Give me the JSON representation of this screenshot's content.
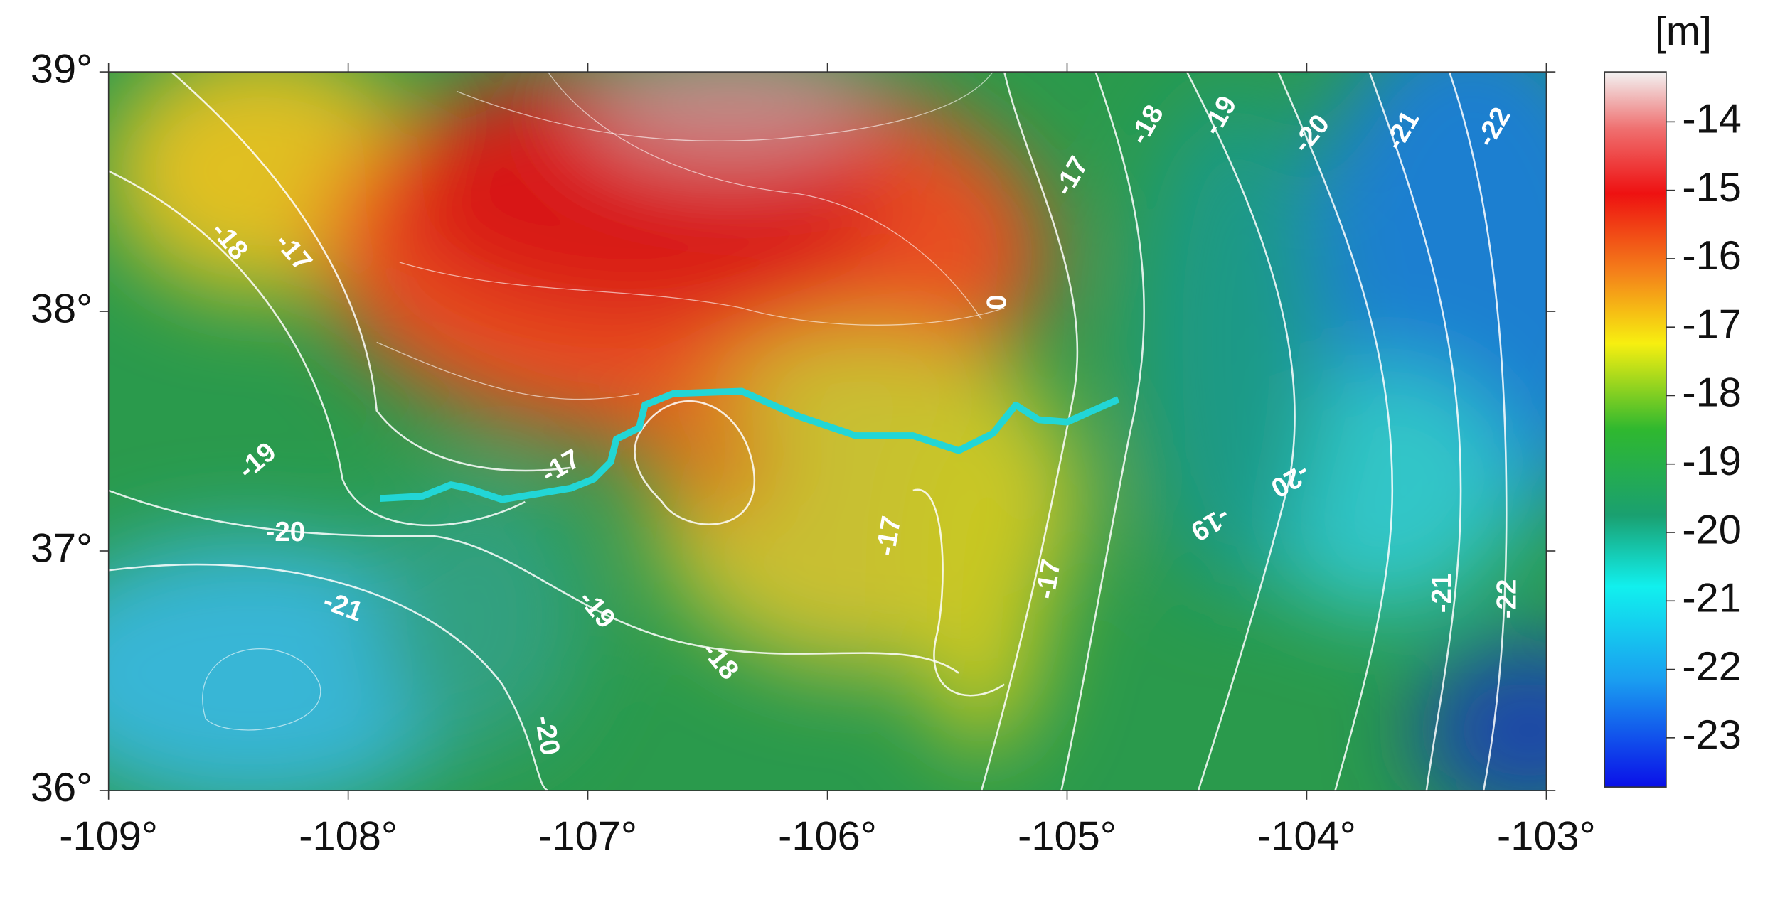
{
  "map": {
    "unit": "[m]",
    "xlim": [
      -109,
      -103
    ],
    "ylim": [
      36,
      39
    ],
    "xticks": [
      {
        "value": -109,
        "label": "-109°"
      },
      {
        "value": -108,
        "label": "-108°"
      },
      {
        "value": -107,
        "label": "-107°"
      },
      {
        "value": -106,
        "label": "-106°"
      },
      {
        "value": -105,
        "label": "-105°"
      },
      {
        "value": -104,
        "label": "-104°"
      },
      {
        "value": -103,
        "label": "-103°"
      }
    ],
    "yticks": [
      {
        "value": 39,
        "label": "39°"
      },
      {
        "value": 38,
        "label": "38°"
      },
      {
        "value": 37,
        "label": "37°"
      },
      {
        "value": 36,
        "label": "36°"
      }
    ],
    "colorbar": {
      "range": [
        -23.72,
        -13.27
      ],
      "ticks": [
        -14,
        -15,
        -16,
        -17,
        -18,
        -19,
        -20,
        -21,
        -22,
        -23
      ]
    },
    "contour_labels": [
      -18,
      -17,
      -19,
      -20,
      -21,
      -20,
      -19,
      -18,
      -17,
      -17,
      -17,
      -17,
      -18,
      -19,
      -20,
      -21,
      -22,
      -20,
      -19,
      -21,
      -22,
      0
    ]
  }
}
